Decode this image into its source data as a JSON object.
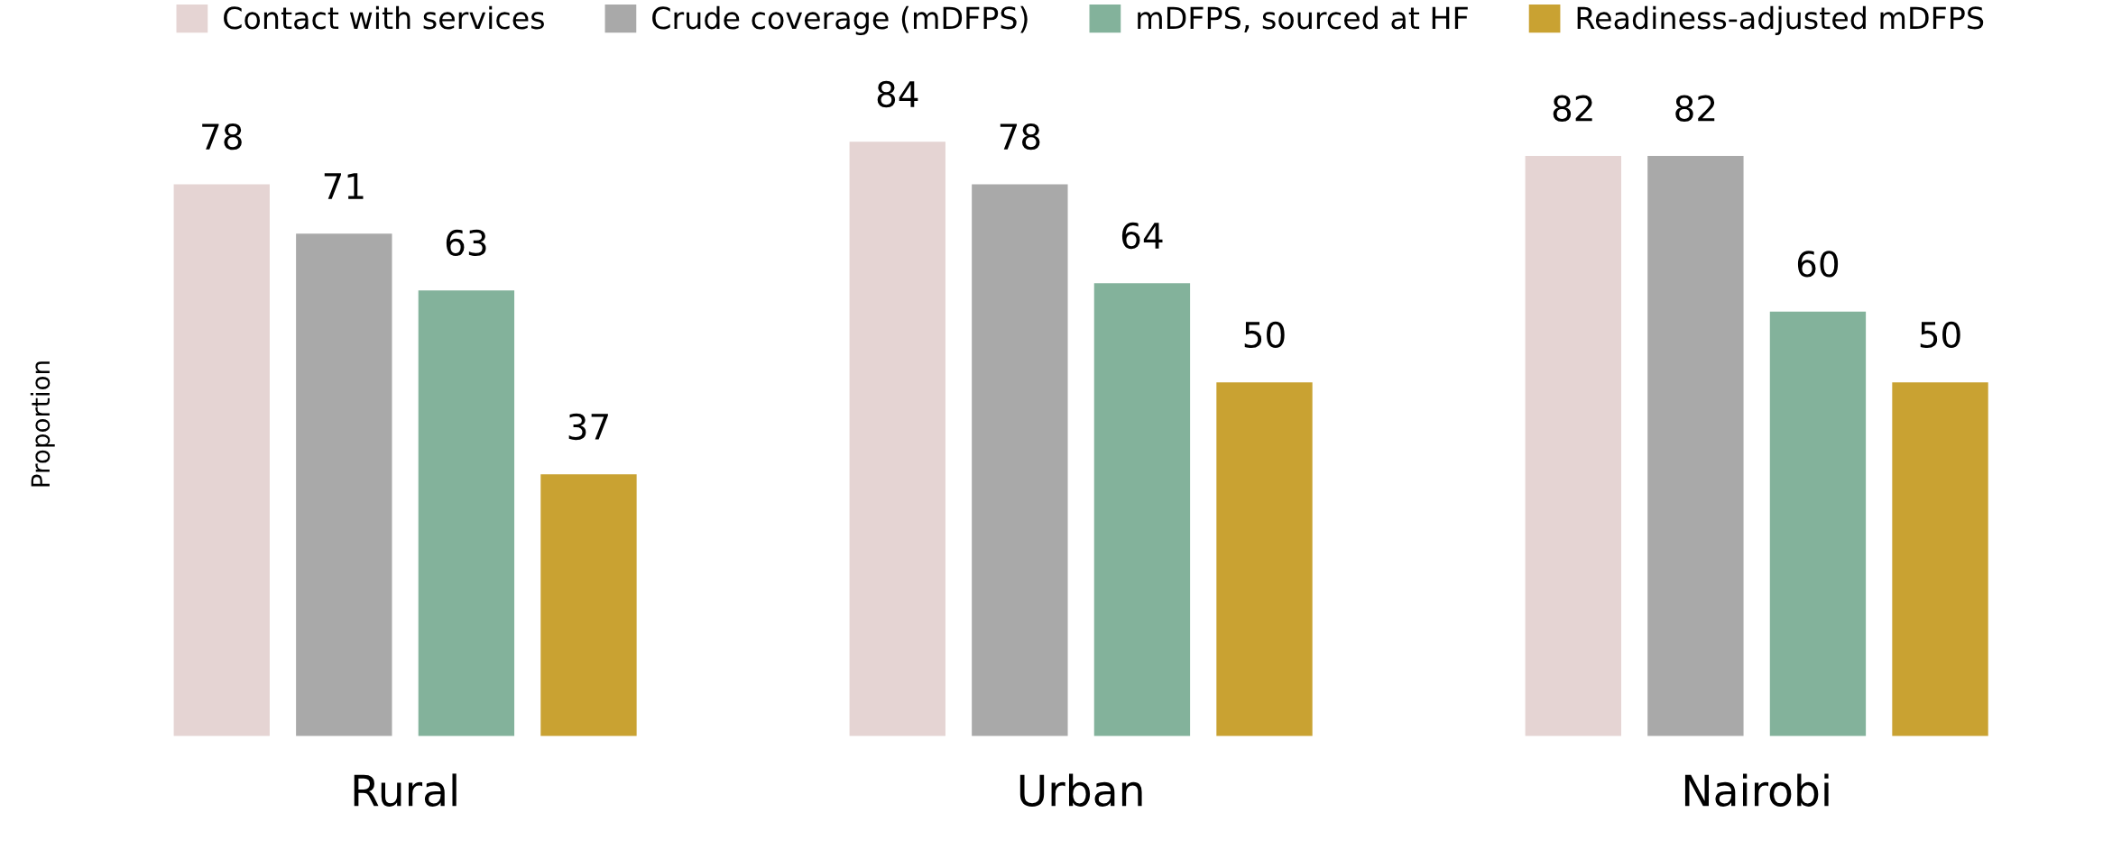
{
  "chart_data": {
    "type": "bar",
    "ylabel": "Proportion",
    "categories": [
      "Rural",
      "Urban",
      "Nairobi"
    ],
    "series": [
      {
        "name": "Contact with services",
        "color": "#e5d4d3",
        "values": [
          78,
          84,
          82
        ]
      },
      {
        "name": "Crude coverage (mDFPS)",
        "color": "#a9a9a9",
        "values": [
          71,
          78,
          82
        ]
      },
      {
        "name": "mDFPS, sourced at HF",
        "color": "#83b29b",
        "values": [
          63,
          64,
          60
        ]
      },
      {
        "name": "Readiness-adjusted mDFPS",
        "color": "#c9a232",
        "values": [
          37,
          50,
          50
        ]
      }
    ],
    "data_labels": true,
    "legend": "top",
    "grid": false
  }
}
